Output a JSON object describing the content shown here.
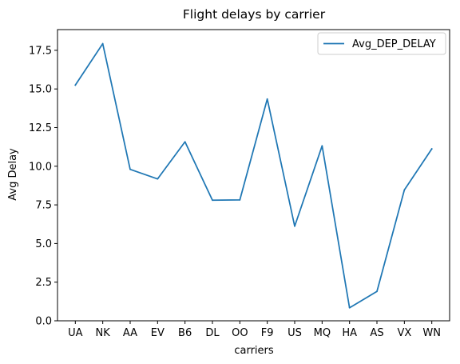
{
  "chart_data": {
    "type": "line",
    "title": "Flight delays by carrier",
    "xlabel": "carriers",
    "ylabel": "Avg Delay",
    "categories": [
      "UA",
      "NK",
      "AA",
      "EV",
      "B6",
      "DL",
      "OO",
      "F9",
      "US",
      "MQ",
      "HA",
      "AS",
      "VX",
      "WN"
    ],
    "series": [
      {
        "name": "Avg_DEP_DELAY",
        "values": [
          15.25,
          17.93,
          9.8,
          9.18,
          11.58,
          7.8,
          7.82,
          14.35,
          6.12,
          11.32,
          0.84,
          1.9,
          8.47,
          11.12
        ],
        "color": "#1f77b4"
      }
    ],
    "ylim": [
      0,
      18.84
    ],
    "yticks": [
      "0.0",
      "2.5",
      "5.0",
      "7.5",
      "10.0",
      "12.5",
      "15.0",
      "17.5"
    ],
    "grid": false,
    "legend_position": "upper right"
  }
}
